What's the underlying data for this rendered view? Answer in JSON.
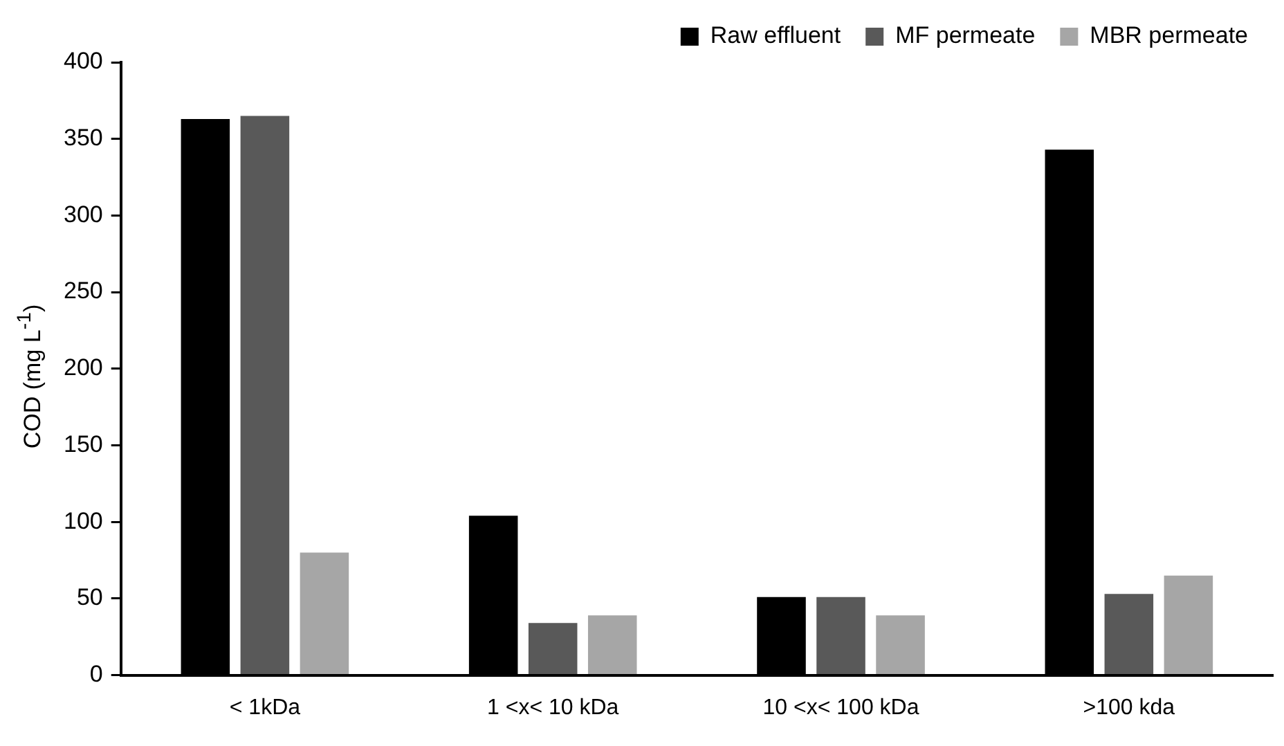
{
  "chart_data": {
    "type": "bar",
    "ylabel": "COD (mg L$^{-1}$)",
    "categories": [
      "< 1kDa",
      "1 <x< 10 kDa",
      "10 <x< 100 kDa",
      ">100 kda"
    ],
    "series": [
      {
        "name": "Raw effluent",
        "color": "#000000",
        "values": [
          363,
          104,
          51,
          343
        ]
      },
      {
        "name": "MF permeate",
        "color": "#595959",
        "values": [
          365,
          34,
          51,
          53
        ]
      },
      {
        "name": "MBR permeate",
        "color": "#a6a6a6",
        "values": [
          80,
          39,
          39,
          65
        ]
      }
    ],
    "ylim": [
      0,
      400
    ],
    "yticks": [
      0,
      50,
      100,
      150,
      200,
      250,
      300,
      350,
      400
    ],
    "grid": false,
    "legend": "top right"
  }
}
